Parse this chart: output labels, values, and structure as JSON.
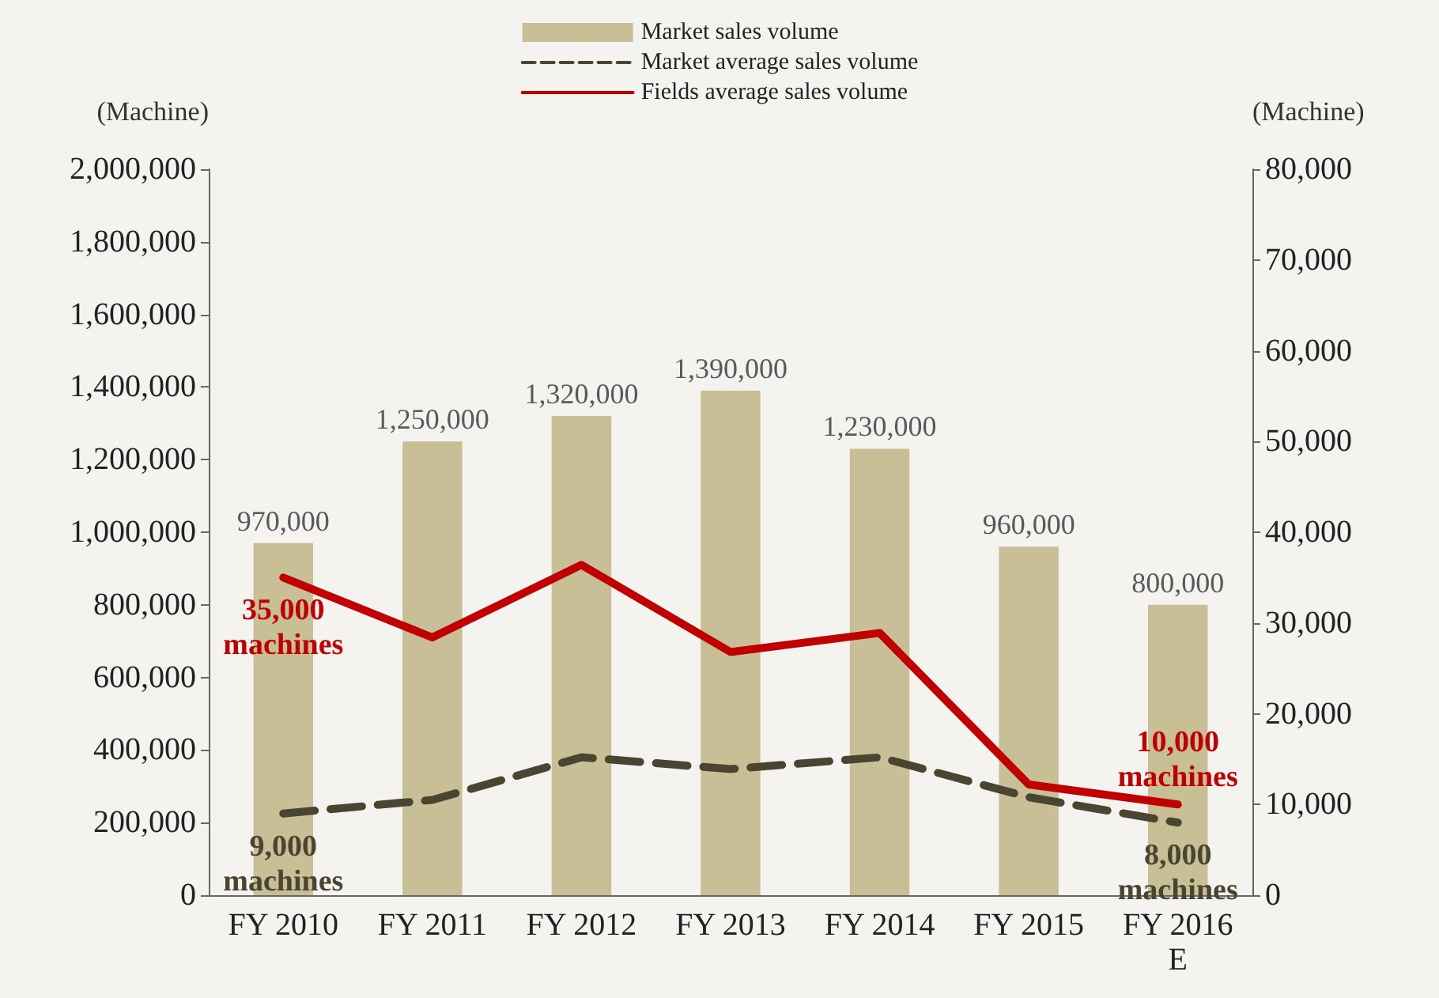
{
  "chart_data": {
    "type": "bar",
    "ylabel": "(Machine)",
    "y2label": "(Machine)",
    "categories": [
      "FY 2010",
      "FY 2011",
      "FY 2012",
      "FY 2013",
      "FY 2014",
      "FY 2015",
      "FY 2016\nE"
    ],
    "series": [
      {
        "name": "Market sales volume",
        "color": "#c8bf97",
        "values": [
          970000,
          1250000,
          1320000,
          1390000,
          1230000,
          960000,
          800000
        ],
        "value_labels": [
          "970,000",
          "1,250,000",
          "1,320,000",
          "1,390,000",
          "1,230,000",
          "960,000",
          "800,000"
        ]
      },
      {
        "name": "Market average sales volume",
        "type": "line",
        "axis": "y2",
        "color": "#4a4530",
        "line_style": "dashed",
        "values": [
          9000,
          10500,
          15200,
          13900,
          15200,
          10800,
          8000
        ],
        "value_labels": [
          "9,000\nmachines",
          null,
          null,
          null,
          null,
          null,
          "8,000\nmachines"
        ]
      },
      {
        "name": "Fields average sales volume",
        "type": "line",
        "axis": "y2",
        "color": "#c00000",
        "line_style": "solid",
        "values": [
          35000,
          28400,
          36400,
          26800,
          28900,
          12200,
          10000
        ],
        "value_labels": [
          "35,000\nmachines",
          null,
          null,
          null,
          null,
          null,
          "10,000\nmachines"
        ]
      }
    ],
    "ylim": [
      0,
      2000000
    ],
    "yticks": [
      0,
      {
        "value": 200000,
        "label": "200,000"
      },
      {
        "value": 400000,
        "label": "400,000"
      },
      {
        "value": 600000,
        "label": "600,000"
      },
      {
        "value": 800000,
        "label": "800,000"
      },
      {
        "value": 1000000,
        "label": "1,000,000"
      },
      {
        "value": 1200000,
        "label": "1,200,000"
      },
      {
        "value": 1400000,
        "label": "1,400,000"
      },
      {
        "value": 1600000,
        "label": "1,600,000"
      },
      {
        "value": 1800000,
        "label": "1,800,000"
      },
      {
        "value": 2000000,
        "label": "2,000,000"
      }
    ],
    "y2lim": [
      0,
      80000
    ],
    "y2ticks": [
      0,
      {
        "value": 10000,
        "label": "10,000"
      },
      {
        "value": 20000,
        "label": "20,000"
      },
      {
        "value": 30000,
        "label": "30,000"
      },
      {
        "value": 40000,
        "label": "40,000"
      },
      {
        "value": 50000,
        "label": "50,000"
      },
      {
        "value": 60000,
        "label": "60,000"
      },
      {
        "value": 70000,
        "label": "70,000"
      },
      {
        "value": 80000,
        "label": "80,000"
      }
    ],
    "grid": false,
    "legend": "top",
    "marker": "none"
  }
}
